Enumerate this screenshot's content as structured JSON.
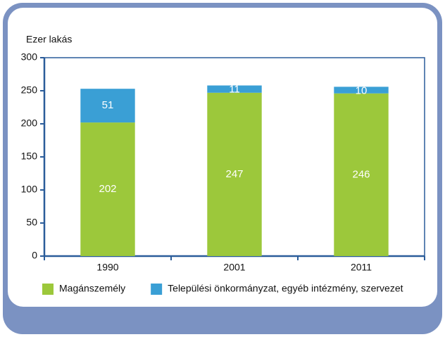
{
  "chart_data": {
    "type": "stacked_bar",
    "ylabel": "Ezer lakás",
    "categories": [
      "1990",
      "2001",
      "2011"
    ],
    "series": [
      {
        "name": "Magánszemély",
        "color": "#9cc83b",
        "values": [
          202,
          247,
          246
        ]
      },
      {
        "name": "Települési önkormányzat, egyéb intézmény, szervezet",
        "color": "#3a9fd5",
        "values": [
          51,
          11,
          10
        ]
      }
    ],
    "ylim": [
      0,
      300
    ],
    "yticks": [
      0,
      50,
      100,
      150,
      200,
      250,
      300
    ],
    "grid": false,
    "legend": "bottom"
  }
}
